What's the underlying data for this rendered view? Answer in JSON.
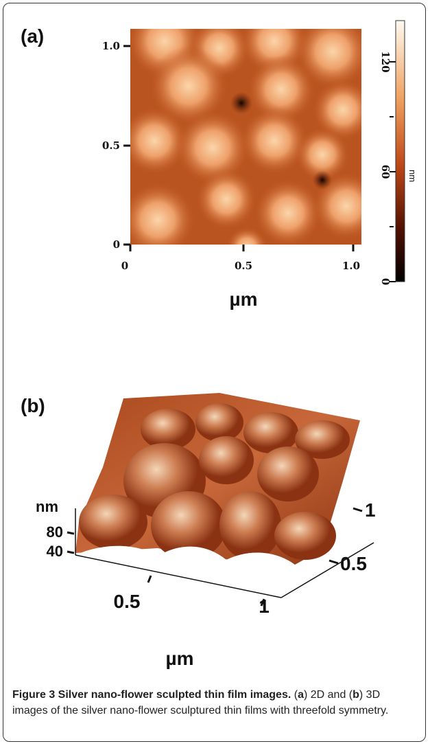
{
  "panel_a": {
    "label": "(a)",
    "y_tick_labels": [
      "1.0",
      "0.5",
      "0"
    ],
    "x_tick_labels": [
      "0",
      "0.5",
      "1.0"
    ],
    "x_axis_label": "µm",
    "colorbar_tick_labels": [
      "120",
      "60",
      "0"
    ],
    "colorbar_unit": "nm"
  },
  "panel_b": {
    "label": "(b)",
    "z_axis_label": "nm",
    "z_tick_labels": [
      "80",
      "40"
    ],
    "x_tick_labels": [
      "0.5",
      "1"
    ],
    "x_axis_label": "µm",
    "y_tick_labels": [
      "1",
      "0.5"
    ]
  },
  "caption": {
    "title": "Figure 3 Silver nano-flower sculpted thin film images.",
    "parts": [
      "(",
      "a",
      ") 2D and (",
      "b",
      ") 3D images of the silver nano-flower sculptured thin films with threefold symmetry."
    ]
  }
}
